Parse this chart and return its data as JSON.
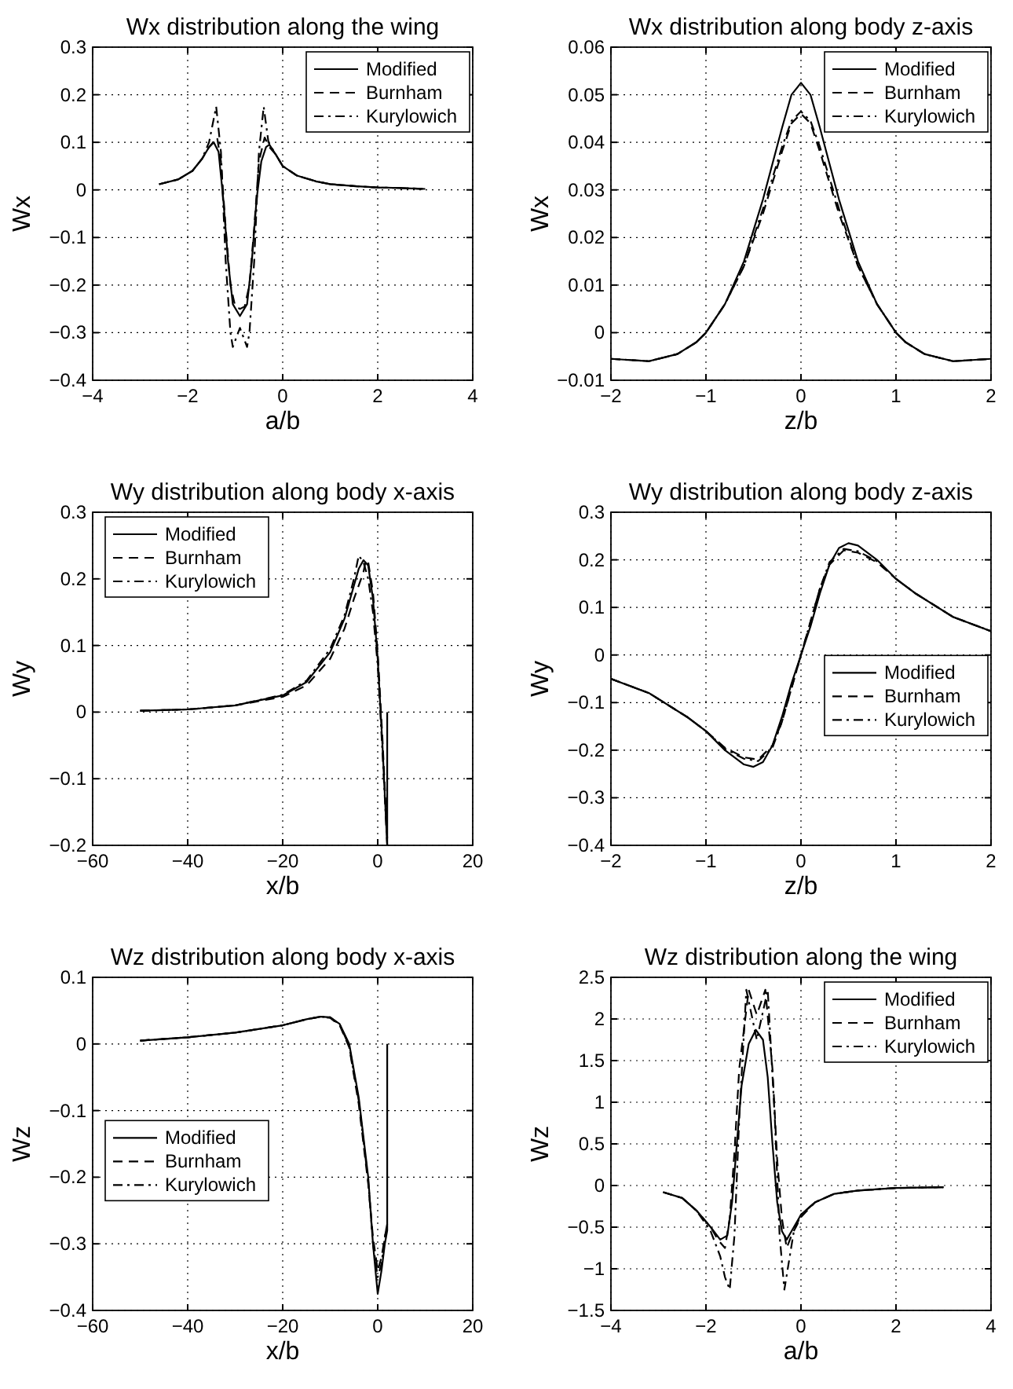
{
  "chart_data": [
    {
      "type": "line",
      "title": "Wx distribution along the wing",
      "xlabel": "a/b",
      "ylabel": "Wx",
      "xlim": [
        -4,
        4
      ],
      "xticks": [
        -4,
        -2,
        0,
        2,
        4
      ],
      "ylim": [
        -0.4,
        0.3
      ],
      "yticks": [
        -0.4,
        -0.3,
        -0.2,
        -0.1,
        0,
        0.1,
        0.2,
        0.3
      ],
      "grid": true,
      "legend": "top right",
      "series": [
        {
          "name": "Modified",
          "color": "#000000",
          "line_style": "solid",
          "x": [
            -2.6,
            -2.2,
            -1.9,
            -1.7,
            -1.55,
            -1.45,
            -1.35,
            -1.25,
            -1.15,
            -1.05,
            -0.9,
            -0.75,
            -0.65,
            -0.55,
            -0.45,
            -0.35,
            -0.28,
            -0.15,
            0,
            0.3,
            0.7,
            1,
            1.5,
            2,
            2.5,
            3
          ],
          "values": [
            0.012,
            0.022,
            0.04,
            0.065,
            0.09,
            0.1,
            0.08,
            -0.02,
            -0.15,
            -0.24,
            -0.265,
            -0.24,
            -0.15,
            -0.02,
            0.06,
            0.09,
            0.095,
            0.075,
            0.05,
            0.03,
            0.018,
            0.012,
            0.008,
            0.005,
            0.004,
            0.002
          ]
        },
        {
          "name": "Burnham",
          "color": "#000000",
          "line_style": "dashed",
          "x": [
            -2.6,
            -2.2,
            -1.9,
            -1.7,
            -1.55,
            -1.38,
            -1.3,
            -1.2,
            -1.1,
            -1.0,
            -0.9,
            -0.8,
            -0.7,
            -0.6,
            -0.5,
            -0.38,
            -0.28,
            -0.15,
            0,
            0.3,
            0.7,
            1,
            1.5,
            2,
            2.5,
            3
          ],
          "values": [
            0.012,
            0.022,
            0.04,
            0.065,
            0.09,
            0.11,
            0.06,
            -0.08,
            -0.2,
            -0.245,
            -0.25,
            -0.245,
            -0.2,
            -0.08,
            0.06,
            0.11,
            0.09,
            0.075,
            0.05,
            0.03,
            0.018,
            0.012,
            0.008,
            0.005,
            0.004,
            0.002
          ]
        },
        {
          "name": "Kurylowich",
          "color": "#000000",
          "line_style": "dashdot",
          "x": [
            -2.6,
            -2.2,
            -1.9,
            -1.7,
            -1.55,
            -1.4,
            -1.3,
            -1.2,
            -1.1,
            -1.05,
            -0.9,
            -0.75,
            -0.7,
            -0.6,
            -0.5,
            -0.4,
            -0.3,
            -0.15,
            0,
            0.3,
            0.7,
            1,
            1.5,
            2,
            2.5,
            3
          ],
          "values": [
            0.012,
            0.022,
            0.04,
            0.065,
            0.1,
            0.175,
            0.08,
            -0.15,
            -0.3,
            -0.33,
            -0.29,
            -0.33,
            -0.3,
            -0.15,
            0.08,
            0.175,
            0.1,
            0.075,
            0.05,
            0.03,
            0.018,
            0.012,
            0.008,
            0.005,
            0.004,
            0.002
          ]
        }
      ]
    },
    {
      "type": "line",
      "title": "Wx distribution along body z-axis",
      "xlabel": "z/b",
      "ylabel": "Wx",
      "xlim": [
        -2,
        2
      ],
      "xticks": [
        -2,
        -1,
        0,
        1,
        2
      ],
      "ylim": [
        -0.01,
        0.06
      ],
      "yticks": [
        -0.01,
        0,
        0.01,
        0.02,
        0.03,
        0.04,
        0.05,
        0.06
      ],
      "grid": true,
      "legend": "top right",
      "series": [
        {
          "name": "Modified",
          "color": "#000000",
          "line_style": "solid",
          "x": [
            -2,
            -1.6,
            -1.3,
            -1.1,
            -1,
            -0.8,
            -0.6,
            -0.4,
            -0.2,
            -0.1,
            0,
            0.1,
            0.2,
            0.4,
            0.6,
            0.8,
            1,
            1.1,
            1.3,
            1.6,
            2
          ],
          "values": [
            -0.0055,
            -0.006,
            -0.0045,
            -0.002,
            0,
            0.006,
            0.015,
            0.028,
            0.043,
            0.05,
            0.0525,
            0.05,
            0.043,
            0.028,
            0.015,
            0.006,
            0,
            -0.002,
            -0.0045,
            -0.006,
            -0.0055
          ]
        },
        {
          "name": "Burnham",
          "color": "#000000",
          "line_style": "dashed",
          "x": [
            -2,
            -1.6,
            -1.3,
            -1.1,
            -1,
            -0.8,
            -0.6,
            -0.4,
            -0.2,
            -0.1,
            0,
            0.1,
            0.2,
            0.4,
            0.6,
            0.8,
            1,
            1.1,
            1.3,
            1.6,
            2
          ],
          "values": [
            -0.0055,
            -0.006,
            -0.0045,
            -0.002,
            0,
            0.006,
            0.014,
            0.025,
            0.038,
            0.044,
            0.046,
            0.044,
            0.038,
            0.025,
            0.014,
            0.006,
            0,
            -0.002,
            -0.0045,
            -0.006,
            -0.0055
          ]
        },
        {
          "name": "Kurylowich",
          "color": "#000000",
          "line_style": "dashdot",
          "x": [
            -2,
            -1.6,
            -1.3,
            -1.1,
            -1,
            -0.8,
            -0.6,
            -0.4,
            -0.2,
            -0.1,
            0,
            0.1,
            0.2,
            0.4,
            0.6,
            0.8,
            1,
            1.1,
            1.3,
            1.6,
            2
          ],
          "values": [
            -0.0055,
            -0.006,
            -0.0045,
            -0.002,
            0,
            0.006,
            0.014,
            0.026,
            0.039,
            0.0445,
            0.0465,
            0.0445,
            0.039,
            0.026,
            0.014,
            0.006,
            0,
            -0.002,
            -0.0045,
            -0.006,
            -0.0055
          ]
        }
      ]
    },
    {
      "type": "line",
      "title": "Wy distribution along body x-axis",
      "xlabel": "x/b",
      "ylabel": "Wy",
      "xlim": [
        -60,
        20
      ],
      "xticks": [
        -60,
        -40,
        -20,
        0,
        20
      ],
      "ylim": [
        -0.2,
        0.3
      ],
      "yticks": [
        -0.2,
        -0.1,
        0,
        0.1,
        0.2,
        0.3
      ],
      "grid": true,
      "legend": "top left",
      "series": [
        {
          "name": "Modified",
          "color": "#000000",
          "line_style": "solid",
          "x": [
            -50,
            -40,
            -30,
            -20,
            -15,
            -10,
            -7,
            -5,
            -4,
            -3,
            -2,
            -1,
            0,
            1,
            2,
            2
          ],
          "values": [
            0.002,
            0.004,
            0.01,
            0.025,
            0.045,
            0.09,
            0.14,
            0.19,
            0.215,
            0.228,
            0.22,
            0.17,
            0.08,
            -0.05,
            -0.2,
            0
          ]
        },
        {
          "name": "Burnham",
          "color": "#000000",
          "line_style": "dashed",
          "x": [
            -50,
            -40,
            -30,
            -20,
            -15,
            -10,
            -7,
            -5,
            -3,
            -2.5,
            -2,
            -1,
            0,
            1,
            2
          ],
          "values": [
            0.002,
            0.004,
            0.01,
            0.023,
            0.04,
            0.08,
            0.125,
            0.17,
            0.21,
            0.228,
            0.225,
            0.18,
            0.09,
            -0.04,
            -0.19
          ]
        },
        {
          "name": "Kurylowich",
          "color": "#000000",
          "line_style": "dashdot",
          "x": [
            -50,
            -40,
            -30,
            -20,
            -15,
            -10,
            -7,
            -5,
            -4,
            -3,
            -2,
            -1,
            0,
            1,
            2
          ],
          "values": [
            0.002,
            0.004,
            0.01,
            0.026,
            0.047,
            0.095,
            0.145,
            0.2,
            0.235,
            0.225,
            0.2,
            0.15,
            0.07,
            -0.06,
            -0.2
          ]
        }
      ]
    },
    {
      "type": "line",
      "title": "Wy distribution along body z-axis",
      "xlabel": "z/b",
      "ylabel": "Wy",
      "xlim": [
        -2,
        2
      ],
      "xticks": [
        -2,
        -1,
        0,
        1,
        2
      ],
      "ylim": [
        -0.4,
        0.3
      ],
      "yticks": [
        -0.4,
        -0.3,
        -0.2,
        -0.1,
        0,
        0.1,
        0.2,
        0.3
      ],
      "grid": true,
      "legend": "right",
      "series": [
        {
          "name": "Modified",
          "color": "#000000",
          "line_style": "solid",
          "x": [
            -2,
            -1.6,
            -1.2,
            -1,
            -0.8,
            -0.6,
            -0.5,
            -0.4,
            -0.3,
            -0.2,
            -0.1,
            0,
            0.1,
            0.2,
            0.3,
            0.4,
            0.5,
            0.6,
            0.8,
            1,
            1.2,
            1.6,
            2
          ],
          "values": [
            -0.05,
            -0.08,
            -0.13,
            -0.16,
            -0.2,
            -0.23,
            -0.235,
            -0.225,
            -0.19,
            -0.13,
            -0.06,
            0,
            0.06,
            0.13,
            0.19,
            0.225,
            0.235,
            0.23,
            0.2,
            0.16,
            0.13,
            0.08,
            0.05
          ]
        },
        {
          "name": "Burnham",
          "color": "#000000",
          "line_style": "dashed",
          "x": [
            -2,
            -1.6,
            -1.2,
            -1,
            -0.8,
            -0.6,
            -0.45,
            -0.3,
            -0.2,
            -0.1,
            0,
            0.1,
            0.2,
            0.3,
            0.45,
            0.6,
            0.8,
            1,
            1.2,
            1.6,
            2
          ],
          "values": [
            -0.05,
            -0.08,
            -0.13,
            -0.16,
            -0.195,
            -0.215,
            -0.22,
            -0.19,
            -0.14,
            -0.07,
            0,
            0.07,
            0.14,
            0.19,
            0.22,
            0.215,
            0.195,
            0.16,
            0.13,
            0.08,
            0.05
          ]
        },
        {
          "name": "Kurylowich",
          "color": "#000000",
          "line_style": "dashdot",
          "x": [
            -2,
            -1.6,
            -1.2,
            -1,
            -0.8,
            -0.6,
            -0.45,
            -0.3,
            -0.2,
            -0.1,
            0,
            0.1,
            0.2,
            0.3,
            0.45,
            0.6,
            0.8,
            1,
            1.2,
            1.6,
            2
          ],
          "values": [
            -0.05,
            -0.08,
            -0.13,
            -0.16,
            -0.197,
            -0.218,
            -0.223,
            -0.195,
            -0.14,
            -0.07,
            0,
            0.07,
            0.14,
            0.195,
            0.223,
            0.218,
            0.197,
            0.16,
            0.13,
            0.08,
            0.05
          ]
        }
      ]
    },
    {
      "type": "line",
      "title": "Wz distribution along body x-axis",
      "xlabel": "x/b",
      "ylabel": "Wz",
      "xlim": [
        -60,
        20
      ],
      "xticks": [
        -60,
        -40,
        -20,
        0,
        20
      ],
      "ylim": [
        -0.4,
        0.1
      ],
      "yticks": [
        -0.4,
        -0.3,
        -0.2,
        -0.1,
        0,
        0.1
      ],
      "grid": true,
      "legend": "left",
      "series": [
        {
          "name": "Modified",
          "color": "#000000",
          "line_style": "solid",
          "x": [
            -50,
            -40,
            -30,
            -20,
            -15,
            -12,
            -10,
            -8,
            -6,
            -4,
            -2,
            -1,
            0,
            0.8,
            1.5,
            2,
            2
          ],
          "values": [
            0.005,
            0.01,
            0.017,
            0.028,
            0.037,
            0.041,
            0.04,
            0.03,
            0,
            -0.08,
            -0.2,
            -0.3,
            -0.375,
            -0.34,
            -0.3,
            -0.28,
            0
          ]
        },
        {
          "name": "Burnham",
          "color": "#000000",
          "line_style": "dashed",
          "x": [
            -50,
            -40,
            -30,
            -20,
            -15,
            -12,
            -10,
            -8,
            -6,
            -4,
            -2,
            -1,
            0,
            0.8,
            1.5,
            2
          ],
          "values": [
            0.005,
            0.01,
            0.017,
            0.028,
            0.037,
            0.041,
            0.039,
            0.028,
            -0.005,
            -0.09,
            -0.21,
            -0.29,
            -0.34,
            -0.32,
            -0.29,
            -0.27
          ]
        },
        {
          "name": "Kurylowich",
          "color": "#000000",
          "line_style": "dashdot",
          "x": [
            -50,
            -40,
            -30,
            -20,
            -15,
            -12,
            -10,
            -8,
            -6,
            -4,
            -2,
            -1,
            0,
            0.8,
            1.5,
            2
          ],
          "values": [
            0.005,
            0.01,
            0.017,
            0.028,
            0.037,
            0.041,
            0.04,
            0.029,
            -0.003,
            -0.085,
            -0.205,
            -0.3,
            -0.35,
            -0.33,
            -0.29,
            -0.27
          ]
        }
      ]
    },
    {
      "type": "line",
      "title": "Wz distribution along the wing",
      "xlabel": "a/b",
      "ylabel": "Wz",
      "xlim": [
        -4,
        4
      ],
      "xticks": [
        -4,
        -2,
        0,
        2,
        4
      ],
      "ylim": [
        -1.5,
        2.5
      ],
      "yticks": [
        -1.5,
        -1,
        -0.5,
        0,
        0.5,
        1,
        1.5,
        2,
        2.5
      ],
      "grid": true,
      "legend": "top right",
      "series": [
        {
          "name": "Modified",
          "color": "#000000",
          "line_style": "solid",
          "x": [
            -2.9,
            -2.5,
            -2.2,
            -1.9,
            -1.7,
            -1.55,
            -1.45,
            -1.35,
            -1.25,
            -1.1,
            -0.95,
            -0.8,
            -0.7,
            -0.6,
            -0.5,
            -0.4,
            -0.3,
            -0.2,
            0,
            0.3,
            0.7,
            1.2,
            2,
            3
          ],
          "values": [
            -0.08,
            -0.15,
            -0.3,
            -0.5,
            -0.65,
            -0.6,
            -0.2,
            0.5,
            1.2,
            1.7,
            1.87,
            1.75,
            1.3,
            0.5,
            -0.2,
            -0.55,
            -0.65,
            -0.55,
            -0.35,
            -0.2,
            -0.1,
            -0.06,
            -0.03,
            -0.02
          ]
        },
        {
          "name": "Burnham",
          "color": "#000000",
          "line_style": "dashed",
          "x": [
            -2.9,
            -2.5,
            -2.2,
            -1.9,
            -1.75,
            -1.6,
            -1.5,
            -1.4,
            -1.3,
            -1.1,
            -0.93,
            -0.75,
            -0.6,
            -0.5,
            -0.4,
            -0.3,
            -0.2,
            0,
            0.3,
            0.7,
            1.2,
            2,
            3
          ],
          "values": [
            -0.08,
            -0.15,
            -0.3,
            -0.5,
            -0.65,
            -0.75,
            -0.4,
            0.4,
            1.4,
            2.35,
            2.05,
            2.35,
            1.4,
            0.3,
            -0.4,
            -0.75,
            -0.6,
            -0.38,
            -0.2,
            -0.1,
            -0.06,
            -0.03,
            -0.02
          ]
        },
        {
          "name": "Kurylowich",
          "color": "#000000",
          "line_style": "dashdot",
          "x": [
            -2.9,
            -2.5,
            -2.2,
            -1.9,
            -1.7,
            -1.6,
            -1.5,
            -1.4,
            -1.3,
            -1.15,
            -0.93,
            -0.7,
            -0.55,
            -0.45,
            -0.35,
            -0.25,
            -0.15,
            0,
            0.3,
            0.7,
            1.2,
            2,
            3
          ],
          "values": [
            -0.08,
            -0.15,
            -0.3,
            -0.55,
            -0.85,
            -1.1,
            -1.25,
            -0.6,
            0.8,
            2.35,
            1.75,
            2.35,
            0.8,
            -0.6,
            -1.25,
            -0.9,
            -0.55,
            -0.35,
            -0.2,
            -0.1,
            -0.06,
            -0.03,
            -0.02
          ]
        }
      ]
    }
  ]
}
